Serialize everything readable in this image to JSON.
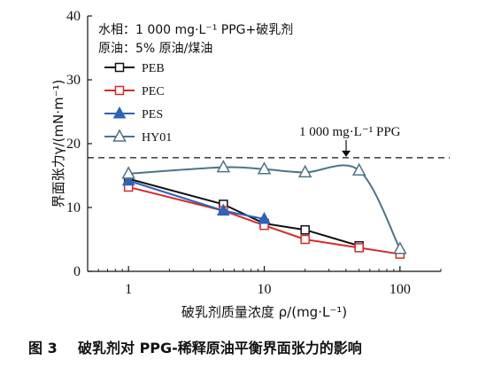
{
  "chart_data": {
    "type": "line",
    "x_scale": "log",
    "xlim": [
      0.5,
      200
    ],
    "ylim": [
      0,
      40
    ],
    "x_ticks": [
      1,
      10,
      100
    ],
    "y_ticks": [
      0,
      10,
      20,
      30,
      40
    ],
    "xlabel": "破乳剂质量浓度 ρ/(mg·L⁻¹)",
    "ylabel": "界面张力γ/(mN·m⁻¹)",
    "grid": false,
    "legend_position": "left, below conditions",
    "conditions": [
      "水相：1 000 mg·L⁻¹ PPG+破乳剂",
      "原油：5% 原油/煤油"
    ],
    "reference_line": {
      "y": 17.8,
      "label": "1 000 mg·L⁻¹ PPG"
    },
    "series": [
      {
        "name": "PEB",
        "marker": "square-open",
        "color": "#111111",
        "smooth": false,
        "x": [
          1,
          5,
          10,
          20,
          50
        ],
        "y": [
          14.5,
          10.5,
          7.5,
          6.5,
          4.0
        ]
      },
      {
        "name": "PEC",
        "marker": "square-open",
        "color": "#d62a2a",
        "smooth": false,
        "x": [
          1,
          5,
          10,
          20,
          50,
          100
        ],
        "y": [
          13.2,
          9.5,
          7.2,
          5.0,
          3.7,
          2.7
        ]
      },
      {
        "name": "PES",
        "marker": "triangle-filled",
        "color": "#2f62b8",
        "smooth": false,
        "x": [
          1,
          5,
          10
        ],
        "y": [
          14.2,
          9.5,
          8.2
        ]
      },
      {
        "name": "HY01",
        "marker": "triangle-open",
        "color": "#4d7388",
        "smooth": true,
        "x": [
          1,
          5,
          10,
          20,
          50,
          100
        ],
        "y": [
          15.3,
          16.3,
          16.0,
          15.5,
          15.8,
          3.5
        ]
      }
    ]
  },
  "caption": {
    "number": "图 3",
    "text": "破乳剂对 PPG-稀释原油平衡界面张力的影响"
  }
}
